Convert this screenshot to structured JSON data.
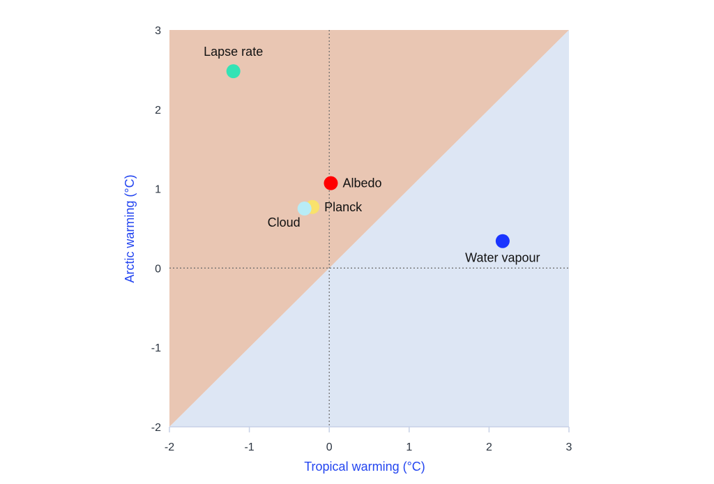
{
  "chart_data": {
    "type": "scatter",
    "xlabel": "Tropical warming (°C)",
    "ylabel": "Arctic warming (°C)",
    "xlim": [
      -2,
      3
    ],
    "ylim": [
      -2,
      3
    ],
    "xticks": [
      -2,
      -1,
      0,
      1,
      2,
      3
    ],
    "yticks": [
      -2,
      -1,
      0,
      1,
      2,
      3
    ],
    "xtick_labels": [
      "-2",
      "-1",
      "0",
      "1",
      "2",
      "3"
    ],
    "ytick_labels": [
      "-2",
      "-1",
      "0",
      "1",
      "2",
      "3"
    ],
    "grid": false,
    "reference_lines": [
      "x = 0",
      "y = 0"
    ],
    "regions": [
      {
        "side": "above y = x",
        "color": "#e9c6b3"
      },
      {
        "side": "below y = x",
        "color": "#dde6f4"
      }
    ],
    "points": [
      {
        "label": "Lapse rate",
        "x": -1.2,
        "y": 2.48,
        "color": "#33e3b5",
        "label_pos": "above"
      },
      {
        "label": "Albedo",
        "x": 0.02,
        "y": 1.07,
        "color": "#ff0000",
        "label_pos": "right"
      },
      {
        "label": "Planck",
        "x": -0.21,
        "y": 0.77,
        "color": "#f9e26b",
        "label_pos": "right"
      },
      {
        "label": "Cloud",
        "x": -0.31,
        "y": 0.75,
        "color": "#b8ecf6",
        "label_pos": "below-left"
      },
      {
        "label": "Water vapour",
        "x": 2.17,
        "y": 0.34,
        "color": "#1a35ff",
        "label_pos": "below"
      }
    ]
  },
  "colors": {
    "axis_label": "#2345f0",
    "tick_text": "#2b3440",
    "axis_line": "#c7d1e6",
    "dotted_line": "#666666"
  }
}
